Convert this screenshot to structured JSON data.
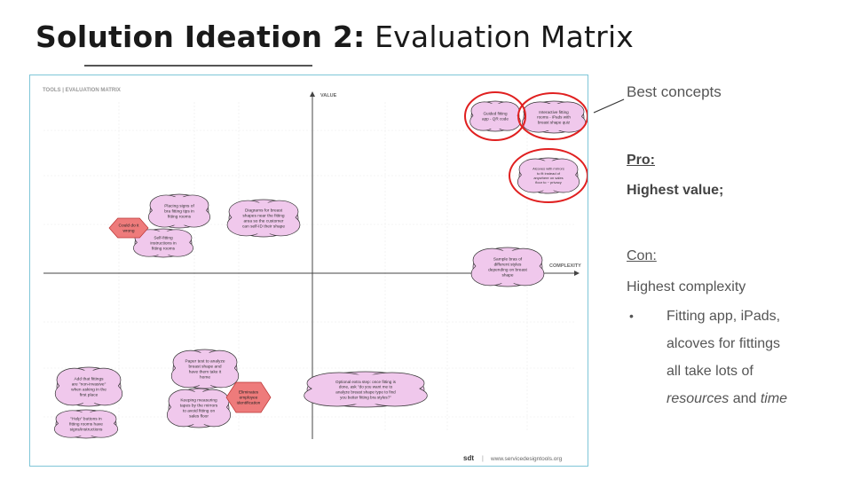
{
  "slide": {
    "title_bold": "Solution Ideation 2:",
    "title_rest": " Evaluation Matrix"
  },
  "matrix": {
    "header": "TOOLS  |  EVALUATION MATRIX",
    "axis_value": "VALUE",
    "axis_complexity": "COMPLEXITY",
    "footer_logo": "sdt",
    "footer_sep": "|",
    "footer_url": "www.servicedesigntools.org",
    "notes": [
      {
        "id": "guided",
        "lines": [
          "Guided fitting",
          "app - QR code"
        ]
      },
      {
        "id": "interactive",
        "lines": [
          "Interactive fitting",
          "rooms - iPads with",
          "breast shape quiz"
        ]
      },
      {
        "id": "alcoves",
        "lines": [
          "Alcoves with mirrors",
          "to fit instead of",
          "anywhere on sales",
          "floor to ~ privacy"
        ]
      },
      {
        "id": "placing",
        "lines": [
          "Placing signs of",
          "bra fitting tips in",
          "fitting rooms"
        ]
      },
      {
        "id": "diagrams",
        "lines": [
          "Diagrams for breast",
          "shapes near the fitting",
          "area so the customer",
          "can self-ID their shape"
        ]
      },
      {
        "id": "selffit",
        "lines": [
          "Self-fitting",
          "instructions in",
          "fitting rooms"
        ]
      },
      {
        "id": "sample",
        "lines": [
          "Sample bras of",
          "different styles",
          "depending on breast",
          "shape"
        ]
      },
      {
        "id": "paper",
        "lines": [
          "Paper test to analyze",
          "breast shape and",
          "have them take it",
          "home"
        ]
      },
      {
        "id": "keeping",
        "lines": [
          "Keeping measuring",
          "tapes by the mirrors",
          "to avoid fitting on",
          "sales floor"
        ]
      },
      {
        "id": "optional",
        "lines": [
          "Optional extra step: once fitting is",
          "done, ask \"do you want me to",
          "analyze breast shape type to find",
          "you better fitting bra styles?\""
        ]
      },
      {
        "id": "addthat",
        "lines": [
          "Add that fittings",
          "are \"non-invasive\"",
          "when asking in the",
          "first place"
        ]
      },
      {
        "id": "help",
        "lines": [
          "\"Help\" buttons in",
          "fitting rooms have",
          "signs/instructions"
        ]
      }
    ],
    "flags": [
      {
        "id": "coulddo",
        "lines": [
          "Could do it",
          "wrong"
        ]
      },
      {
        "id": "eliminates",
        "lines": [
          "Eliminates",
          "employee",
          "identification"
        ]
      }
    ]
  },
  "side": {
    "best_concepts": "Best concepts",
    "pro_label": "Pro:",
    "pro_value": "Highest value;",
    "con_label": "Con:",
    "con_value": "Highest complexity",
    "bullet_lines": [
      {
        "bullet": "•",
        "text": "Fitting app, iPads,"
      },
      {
        "bullet": "",
        "text": "alcoves for fittings"
      },
      {
        "bullet": "",
        "text": "all take lots of"
      }
    ],
    "last_line_a": "resources",
    "last_line_b": " and ",
    "last_line_c": "time"
  },
  "colors": {
    "note_fill": "#f0c8ec",
    "flag_fill": "#ee7b7b",
    "circle": "#e02020",
    "border": "#7fc6d8"
  }
}
